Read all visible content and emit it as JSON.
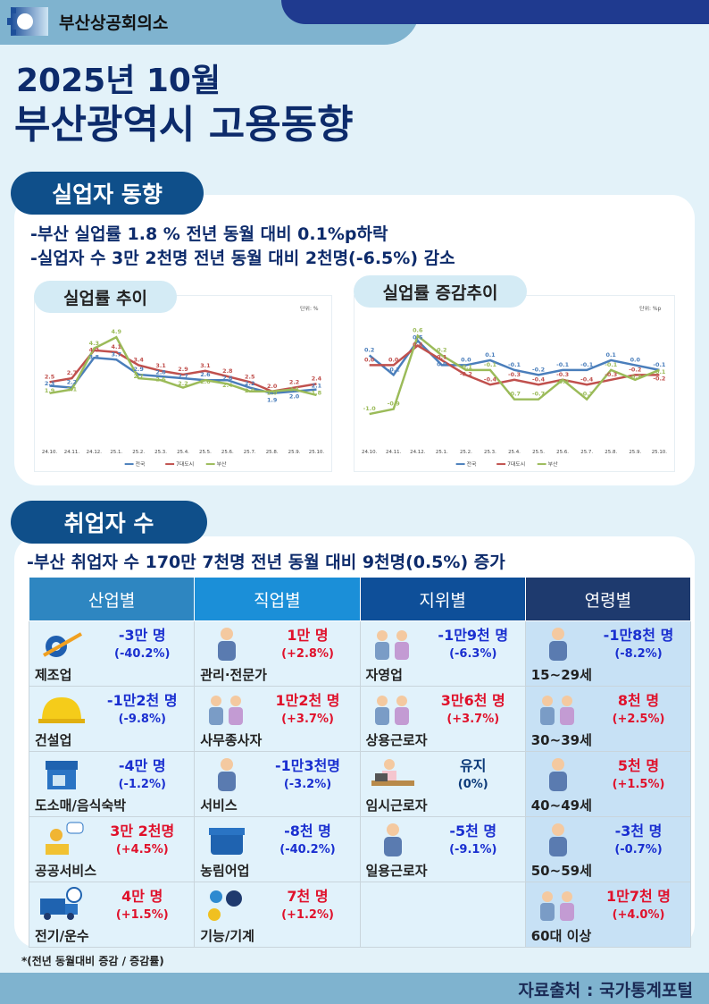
{
  "header": {
    "org": "부산상공회의소",
    "title_line1": "2025년 10월",
    "title_line2": "부산광역시 고용동향"
  },
  "unemployment": {
    "section_title": "실업자 동향",
    "bullets": [
      "-부산 실업률 1.8 % 전년 동월 대비 0.1%p하락",
      "-실업자 수 3만 2천명 전년 동월 대비 2천명(-6.5%) 감소"
    ]
  },
  "employment": {
    "section_title": "취업자 수",
    "bullet": "-부산 취업자 수 170만 7천명 전년 동월 대비 9천명(0.5%)  증가"
  },
  "colors": {
    "korea": "#4a7ebb",
    "seven": "#c0504d",
    "busan": "#9bbb59"
  },
  "chart_data": [
    {
      "type": "line",
      "title": "실업률 추이",
      "unit": "단위: %",
      "categories": [
        "24.10.",
        "24.11.",
        "24.12.",
        "25.1.",
        "25.2.",
        "25.3.",
        "25.4.",
        "25.5.",
        "25.6.",
        "25.7.",
        "25.8.",
        "25.9.",
        "25.10."
      ],
      "ylim": [
        0,
        5.5
      ],
      "series": [
        {
          "name": "전국",
          "values": [
            2.3,
            2.2,
            3.8,
            3.7,
            2.9,
            2.8,
            2.7,
            2.6,
            2.6,
            2.2,
            1.9,
            2.0,
            2.1
          ]
        },
        {
          "name": "7대도시",
          "values": [
            2.5,
            2.7,
            4.2,
            4.1,
            3.4,
            3.1,
            2.9,
            3.1,
            2.8,
            2.5,
            2.0,
            2.2,
            2.4
          ]
        },
        {
          "name": "부산",
          "values": [
            1.9,
            2.1,
            4.3,
            4.9,
            2.7,
            2.6,
            2.2,
            2.6,
            2.4,
            2.0,
            2.0,
            2.1,
            1.8
          ]
        }
      ]
    },
    {
      "type": "line",
      "title": "실업률 증감추이",
      "unit": "단위: %p",
      "categories": [
        "24.10.",
        "24.11.",
        "24.12.",
        "25.1.",
        "25.2.",
        "25.3.",
        "25.4.",
        "25.5.",
        "25.6.",
        "25.7.",
        "25.8.",
        "25.9.",
        "25.10."
      ],
      "ylim": [
        -1.3,
        0.8
      ],
      "series": [
        {
          "name": "전국",
          "values": [
            0.2,
            -0.2,
            0.5,
            0.0,
            0.0,
            0.1,
            -0.1,
            -0.2,
            -0.1,
            -0.1,
            0.1,
            0.0,
            -0.1
          ]
        },
        {
          "name": "7대도시",
          "values": [
            0.0,
            0.0,
            0.4,
            0.1,
            -0.2,
            -0.4,
            -0.3,
            -0.4,
            -0.3,
            -0.4,
            -0.3,
            -0.2,
            -0.2
          ]
        },
        {
          "name": "부산",
          "values": [
            -1.0,
            -0.9,
            0.6,
            0.2,
            -0.1,
            -0.1,
            -0.7,
            -0.7,
            -0.3,
            -0.7,
            -0.1,
            -0.3,
            -0.1
          ]
        }
      ]
    }
  ],
  "table": {
    "columns": [
      {
        "header": "산업별",
        "color": "#2e86c1",
        "cells": [
          {
            "label": "제조업",
            "value": "-3만 명",
            "rate": "(-40.2%)",
            "trend": "down",
            "icon": "gear-arrow"
          },
          {
            "label": "건설업",
            "value": "-1만2천 명",
            "rate": "(-9.8%)",
            "trend": "down",
            "icon": "helmet"
          },
          {
            "label": "도소매/음식숙박",
            "value": "-4만 명",
            "rate": "(-1.2%)",
            "trend": "down",
            "icon": "store"
          },
          {
            "label": "공공서비스",
            "value": "3만 2천명",
            "rate": "(+4.5%)",
            "trend": "up",
            "icon": "person-chat"
          },
          {
            "label": "전기/운수",
            "value": "4만 명",
            "rate": "(+1.5%)",
            "trend": "up",
            "icon": "truck"
          }
        ]
      },
      {
        "header": "직업별",
        "color": "#1b8fd8",
        "cells": [
          {
            "label": "관리·전문가",
            "value": "1만 명",
            "rate": "(+2.8%)",
            "trend": "up",
            "icon": "person"
          },
          {
            "label": "사무종사자",
            "value": "1만2천 명",
            "rate": "(+3.7%)",
            "trend": "up",
            "icon": "people"
          },
          {
            "label": "서비스",
            "value": "-1만3천명",
            "rate": "(-3.2%)",
            "trend": "down",
            "icon": "person"
          },
          {
            "label": "농림어업",
            "value": "-8천 명",
            "rate": "(-40.2%)",
            "trend": "down",
            "icon": "cooler"
          },
          {
            "label": "기능/기계",
            "value": "7천 명",
            "rate": "(+1.2%)",
            "trend": "up",
            "icon": "gears"
          }
        ]
      },
      {
        "header": "지위별",
        "color": "#0e4f99",
        "cells": [
          {
            "label": "자영업",
            "value": "-1만9천 명",
            "rate": "(-6.3%)",
            "trend": "down",
            "icon": "people"
          },
          {
            "label": "상용근로자",
            "value": "3만6천 명",
            "rate": "(+3.7%)",
            "trend": "up",
            "icon": "people"
          },
          {
            "label": "임시근로자",
            "value": "유지",
            "rate": "(0%)",
            "trend": "flat",
            "icon": "person-laptop"
          },
          {
            "label": "일용근로자",
            "value": "-5천 명",
            "rate": "(-9.1%)",
            "trend": "down",
            "icon": "person"
          },
          null
        ]
      },
      {
        "header": "연령별",
        "color": "#1e3a6e",
        "cells": [
          {
            "label": "15~29세",
            "value": "-1만8천 명",
            "rate": "(-8.2%)",
            "trend": "down",
            "icon": "person"
          },
          {
            "label": "30~39세",
            "value": "8천 명",
            "rate": "(+2.5%)",
            "trend": "up",
            "icon": "people"
          },
          {
            "label": "40~49세",
            "value": "5천 명",
            "rate": "(+1.5%)",
            "trend": "up",
            "icon": "person"
          },
          {
            "label": "50~59세",
            "value": "-3천 명",
            "rate": "(-0.7%)",
            "trend": "down",
            "icon": "person"
          },
          {
            "label": "60대 이상",
            "value": "1만7천 명",
            "rate": "(+4.0%)",
            "trend": "up",
            "icon": "people"
          }
        ]
      }
    ]
  },
  "footnote": "*(전년 동월대비 증감 / 증감률)",
  "source": "자료출처 : 국가통계포털"
}
